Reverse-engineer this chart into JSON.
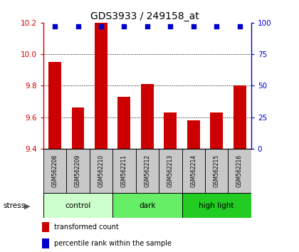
{
  "title": "GDS3933 / 249158_at",
  "samples": [
    "GSM562208",
    "GSM562209",
    "GSM562210",
    "GSM562211",
    "GSM562212",
    "GSM562213",
    "GSM562214",
    "GSM562215",
    "GSM562216"
  ],
  "bar_values": [
    9.95,
    9.66,
    10.2,
    9.73,
    9.81,
    9.63,
    9.58,
    9.63,
    9.8
  ],
  "percentile_values": [
    97,
    97,
    97,
    97,
    97,
    97,
    97,
    97,
    97
  ],
  "ylim": [
    9.4,
    10.2
  ],
  "yticks": [
    9.4,
    9.6,
    9.8,
    10.0,
    10.2
  ],
  "right_yticks": [
    0,
    25,
    50,
    75,
    100
  ],
  "right_ylim": [
    0,
    100
  ],
  "bar_color": "#cc0000",
  "dot_color": "#0000cc",
  "sample_box_color": "#c8c8c8",
  "groups": [
    {
      "label": "control",
      "indices": [
        0,
        1,
        2
      ],
      "color": "#ccffcc"
    },
    {
      "label": "dark",
      "indices": [
        3,
        4,
        5
      ],
      "color": "#66ee66"
    },
    {
      "label": "high light",
      "indices": [
        6,
        7,
        8
      ],
      "color": "#22cc22"
    }
  ],
  "stress_label": "stress",
  "stress_arrow": "▶",
  "legend_bar_label": "transformed count",
  "legend_dot_label": "percentile rank within the sample",
  "tick_label_color_left": "#cc0000",
  "tick_label_color_right": "#0000cc",
  "figsize": [
    4.2,
    3.54
  ],
  "dpi": 100
}
